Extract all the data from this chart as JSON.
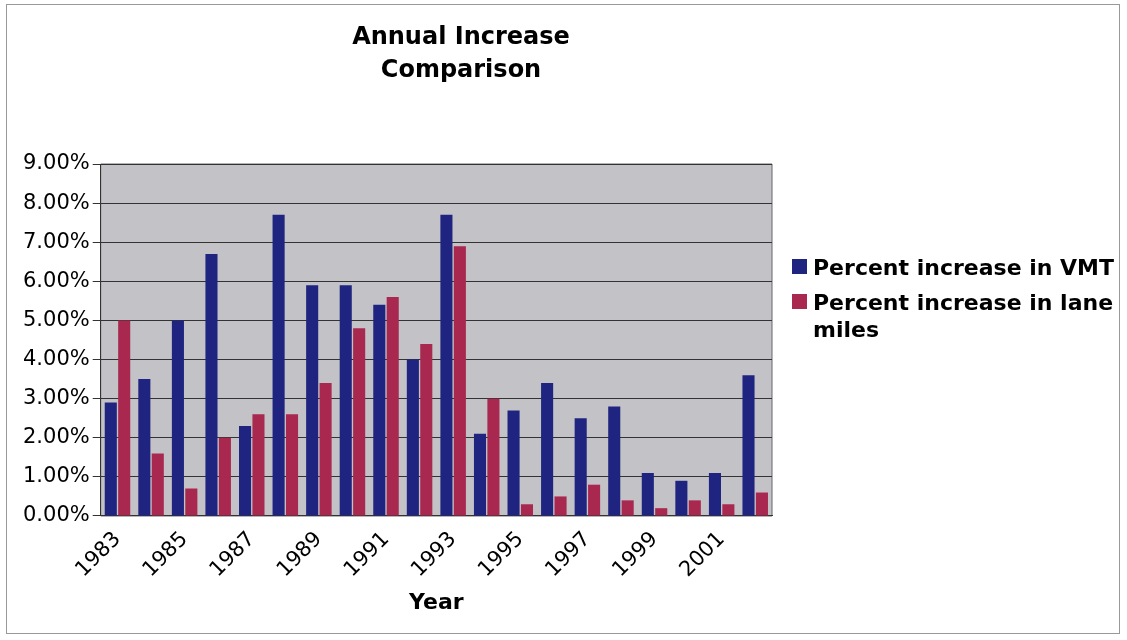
{
  "chart_data": {
    "type": "bar",
    "title": "Annual Increase Comparison",
    "xlabel": "Year",
    "categories": [
      "1983",
      null,
      "1985",
      null,
      "1987",
      null,
      "1989",
      null,
      "1991",
      null,
      "1993",
      null,
      "1995",
      null,
      "1997",
      null,
      "1999",
      null,
      "2001",
      null
    ],
    "series": [
      {
        "name": "Percent increase in VMT",
        "color": "#1f2480",
        "values": [
          2.9,
          3.5,
          5.0,
          6.7,
          2.3,
          7.7,
          5.9,
          5.9,
          5.4,
          4.0,
          7.7,
          2.1,
          2.7,
          3.4,
          2.5,
          2.8,
          1.1,
          0.9,
          1.1,
          3.6
        ]
      },
      {
        "name": "Percent increase in lane miles",
        "color": "#a8284f",
        "values": [
          5.0,
          1.6,
          0.7,
          2.0,
          2.6,
          2.6,
          3.4,
          4.8,
          5.6,
          4.4,
          6.9,
          3.0,
          0.3,
          0.5,
          0.8,
          0.4,
          0.2,
          0.4,
          0.3,
          0.6
        ]
      }
    ],
    "ylim": [
      0,
      9
    ],
    "yticks": [
      {
        "value": 0,
        "label": "0.00%"
      },
      {
        "value": 1,
        "label": "1.00%"
      },
      {
        "value": 2,
        "label": "2.00%"
      },
      {
        "value": 3,
        "label": "3.00%"
      },
      {
        "value": 4,
        "label": "4.00%"
      },
      {
        "value": 5,
        "label": "5.00%"
      },
      {
        "value": 6,
        "label": "6.00%"
      },
      {
        "value": 7,
        "label": "7.00%"
      },
      {
        "value": 8,
        "label": "8.00%"
      },
      {
        "value": 9,
        "label": "9.00%"
      }
    ],
    "grid": "y",
    "legend": "right"
  }
}
